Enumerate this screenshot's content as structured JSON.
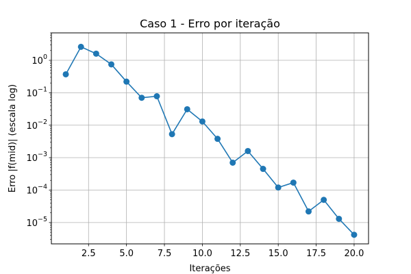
{
  "chart_data": {
    "type": "line",
    "title": "Caso 1 - Erro por iteração",
    "xlabel": "Iterações",
    "ylabel": "Erro |f(mid)| (escala log)",
    "yscale": "log",
    "grid": true,
    "xlim": [
      0.05,
      20.95
    ],
    "ylim": [
      2.2e-06,
      7.0
    ],
    "x_ticks": [
      2.5,
      5.0,
      7.5,
      10.0,
      12.5,
      15.0,
      17.5,
      20.0
    ],
    "x_tick_labels": [
      "2.5",
      "5.0",
      "7.5",
      "10.0",
      "12.5",
      "15.0",
      "17.5",
      "20.0"
    ],
    "y_ticks": [
      1e-05,
      0.0001,
      0.001,
      0.01,
      0.1,
      1
    ],
    "y_tick_bases": [
      "10",
      "10",
      "10",
      "10",
      "10",
      "10"
    ],
    "y_tick_exponents": [
      "−5",
      "−4",
      "−3",
      "−2",
      "−1",
      "0"
    ],
    "series": [
      {
        "color": "#1f77b4",
        "marker": "circle",
        "x": [
          1,
          2,
          3,
          4,
          5,
          6,
          7,
          8,
          9,
          10,
          11,
          12,
          13,
          14,
          15,
          16,
          17,
          18,
          19,
          20
        ],
        "y": [
          0.37,
          2.6,
          1.6,
          0.75,
          0.22,
          0.07,
          0.078,
          0.0053,
          0.031,
          0.013,
          0.0038,
          0.0007,
          0.0016,
          0.00045,
          0.00012,
          0.00017,
          2.2e-05,
          5e-05,
          1.3e-05,
          4.2e-06
        ]
      }
    ]
  }
}
